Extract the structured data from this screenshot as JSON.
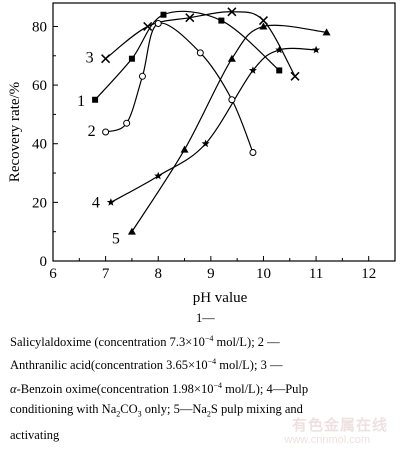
{
  "chart_data": {
    "type": "line",
    "xlabel": "pH value",
    "ylabel": "Recovery rate/%",
    "xlim": [
      6,
      12.5
    ],
    "ylim": [
      0,
      88
    ],
    "xticks": [
      6,
      7,
      8,
      9,
      10,
      11,
      12
    ],
    "yticks": [
      0,
      20,
      40,
      60,
      80
    ],
    "grid": false,
    "series": [
      {
        "name": "1",
        "marker": "square",
        "points": [
          [
            6.8,
            55
          ],
          [
            7.5,
            69
          ],
          [
            8.1,
            84
          ],
          [
            9.2,
            82
          ],
          [
            10.3,
            65
          ]
        ]
      },
      {
        "name": "2",
        "marker": "circle",
        "points": [
          [
            7.0,
            44
          ],
          [
            7.4,
            47
          ],
          [
            7.7,
            63
          ],
          [
            8.0,
            81
          ],
          [
            8.8,
            71
          ],
          [
            9.4,
            55
          ],
          [
            9.8,
            37
          ]
        ]
      },
      {
        "name": "3",
        "marker": "cross",
        "points": [
          [
            7.0,
            69
          ],
          [
            7.8,
            80
          ],
          [
            8.6,
            83
          ],
          [
            9.4,
            85
          ],
          [
            10.0,
            82
          ],
          [
            10.6,
            63
          ]
        ]
      },
      {
        "name": "4",
        "marker": "star",
        "points": [
          [
            7.1,
            20
          ],
          [
            8.0,
            29
          ],
          [
            8.9,
            40
          ],
          [
            9.8,
            65
          ],
          [
            10.3,
            72
          ],
          [
            11.0,
            72
          ]
        ]
      },
      {
        "name": "5",
        "marker": "triangle",
        "points": [
          [
            7.5,
            10
          ],
          [
            8.5,
            38
          ],
          [
            9.4,
            69
          ],
          [
            10.0,
            80
          ],
          [
            11.2,
            78
          ]
        ]
      }
    ]
  },
  "caption": {
    "item1": "1—",
    "item1_desc": "Salicylaldoxime (concentration 7.3×10",
    "item1_exp": "−4",
    "item1_unit": " mol/L); 2 —",
    "item2_desc": "Anthranilic acid(concentration 3.65×10",
    "item2_exp": "−4",
    "item2_unit": " mol/L); 3 —",
    "item3_alpha": "α",
    "item3_desc": "-Benzoin oxime(concentration 1.98×10",
    "item3_exp": "−4",
    "item3_unit": " mol/L); 4—Pulp",
    "item4_desc": "conditioning with Na",
    "item4_sub1": "2",
    "item4_mid": "CO",
    "item4_sub2": "3",
    "item4_end": " only; 5—Na",
    "item5_sub": "2",
    "item5_desc": "S pulp mixing and",
    "item5_end": "activating"
  },
  "watermark": {
    "text": "有色金属在线",
    "url": "www.cnnmol.com"
  }
}
